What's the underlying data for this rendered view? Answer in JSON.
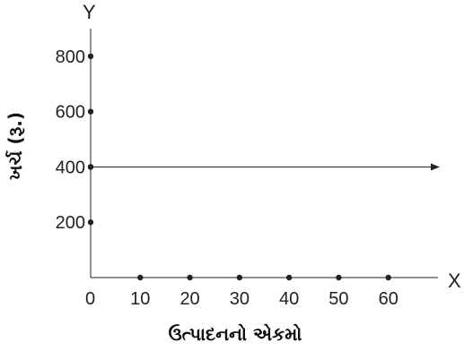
{
  "chart_data": {
    "type": "line",
    "title": "",
    "x_axis_letter": "X",
    "y_axis_letter": "Y",
    "xlabel": "ઉત્પાદનનો એકમો",
    "ylabel": "ખર્ચ (રૂ.)",
    "origin_label": "0",
    "x_ticks": [
      10,
      20,
      30,
      40,
      50,
      60
    ],
    "y_ticks": [
      200,
      400,
      600,
      800
    ],
    "xlim": [
      0,
      70
    ],
    "ylim": [
      0,
      900
    ],
    "series": [
      {
        "points": [
          [
            0,
            400
          ],
          [
            70,
            400
          ]
        ],
        "arrow": true
      }
    ],
    "grid": false,
    "legend": "none"
  }
}
